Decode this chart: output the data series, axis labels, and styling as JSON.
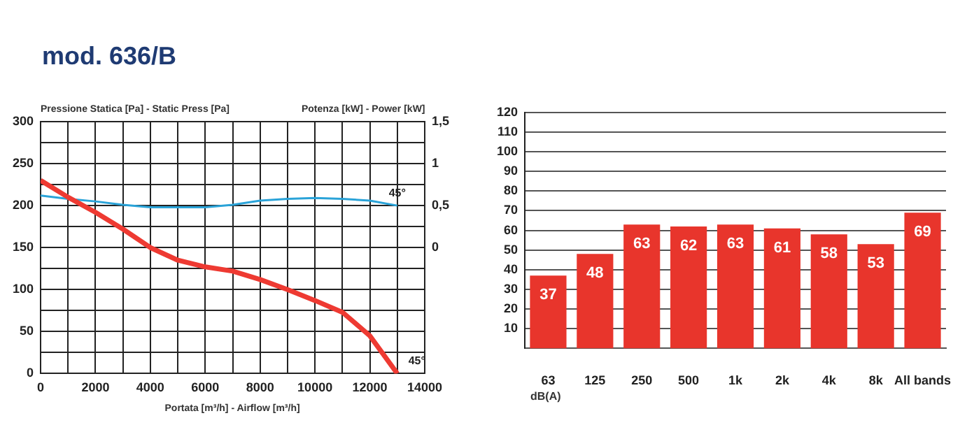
{
  "chart_data": [
    {
      "type": "line",
      "title": "mod. 636/B",
      "ylabel": "Pressione Statica [Pa] - Static Press [Pa]",
      "y2label": "Potenza [kW] - Power [kW]",
      "xlabel": "Portata [m³/h] - Airflow [m³/h]",
      "x": [
        0,
        1000,
        2000,
        3000,
        4000,
        5000,
        6000,
        7000,
        8000,
        9000,
        10000,
        11000,
        12000,
        13000
      ],
      "series": [
        {
          "color": "#ee3a32",
          "values": [
            230,
            210,
            192,
            172,
            150,
            135,
            127,
            122,
            112,
            100,
            87,
            73,
            45,
            0
          ]
        },
        {
          "color": "#2aa3d8",
          "axis": "y2",
          "values": [
            0.62,
            0.58,
            0.55,
            0.51,
            0.48,
            0.48,
            0.48,
            0.51,
            0.56,
            0.58,
            0.59,
            0.58,
            0.56,
            0.5
          ]
        }
      ],
      "xlim": [
        0,
        14000
      ],
      "xticks": [
        0,
        {
          "value": 1000,
          "label": null
        },
        2000,
        {
          "value": 3000,
          "label": null
        },
        4000,
        {
          "value": 5000,
          "label": null
        },
        6000,
        {
          "value": 7000,
          "label": null
        },
        8000,
        {
          "value": 9000,
          "label": null
        },
        10000,
        {
          "value": 11000,
          "label": null
        },
        12000,
        {
          "value": 13000,
          "label": null
        },
        14000
      ],
      "ylim": [
        0,
        300
      ],
      "yticks": [
        0,
        {
          "value": 25,
          "label": null
        },
        50,
        {
          "value": 75,
          "label": null
        },
        100,
        {
          "value": 125,
          "label": null
        },
        150,
        {
          "value": 175,
          "label": null
        },
        200,
        {
          "value": 225,
          "label": null
        },
        250,
        {
          "value": 275,
          "label": null
        },
        300
      ],
      "y2lim": [
        -1.5,
        1.5
      ],
      "y2ticks": [
        0,
        {
          "value": 0.5,
          "label": "0,5"
        },
        1,
        {
          "value": 1.5,
          "label": "1,5"
        }
      ],
      "grid": true,
      "legend": false,
      "marker": "none",
      "line_style": "solid",
      "annotations": [
        "45°",
        "45°"
      ]
    },
    {
      "type": "bar",
      "xlabel": "dB(A)",
      "categories": [
        "63",
        "125",
        "250",
        "500",
        "1k",
        "2k",
        "4k",
        "8k",
        "All bands"
      ],
      "values": [
        37,
        48,
        63,
        62,
        63,
        61,
        58,
        53,
        69
      ],
      "color": "#e8352c",
      "ylim": [
        0,
        120
      ],
      "yticks": [
        10,
        20,
        30,
        40,
        50,
        60,
        70,
        80,
        90,
        100,
        110,
        120
      ],
      "grid": "y",
      "legend": false,
      "data_labels": true
    }
  ]
}
